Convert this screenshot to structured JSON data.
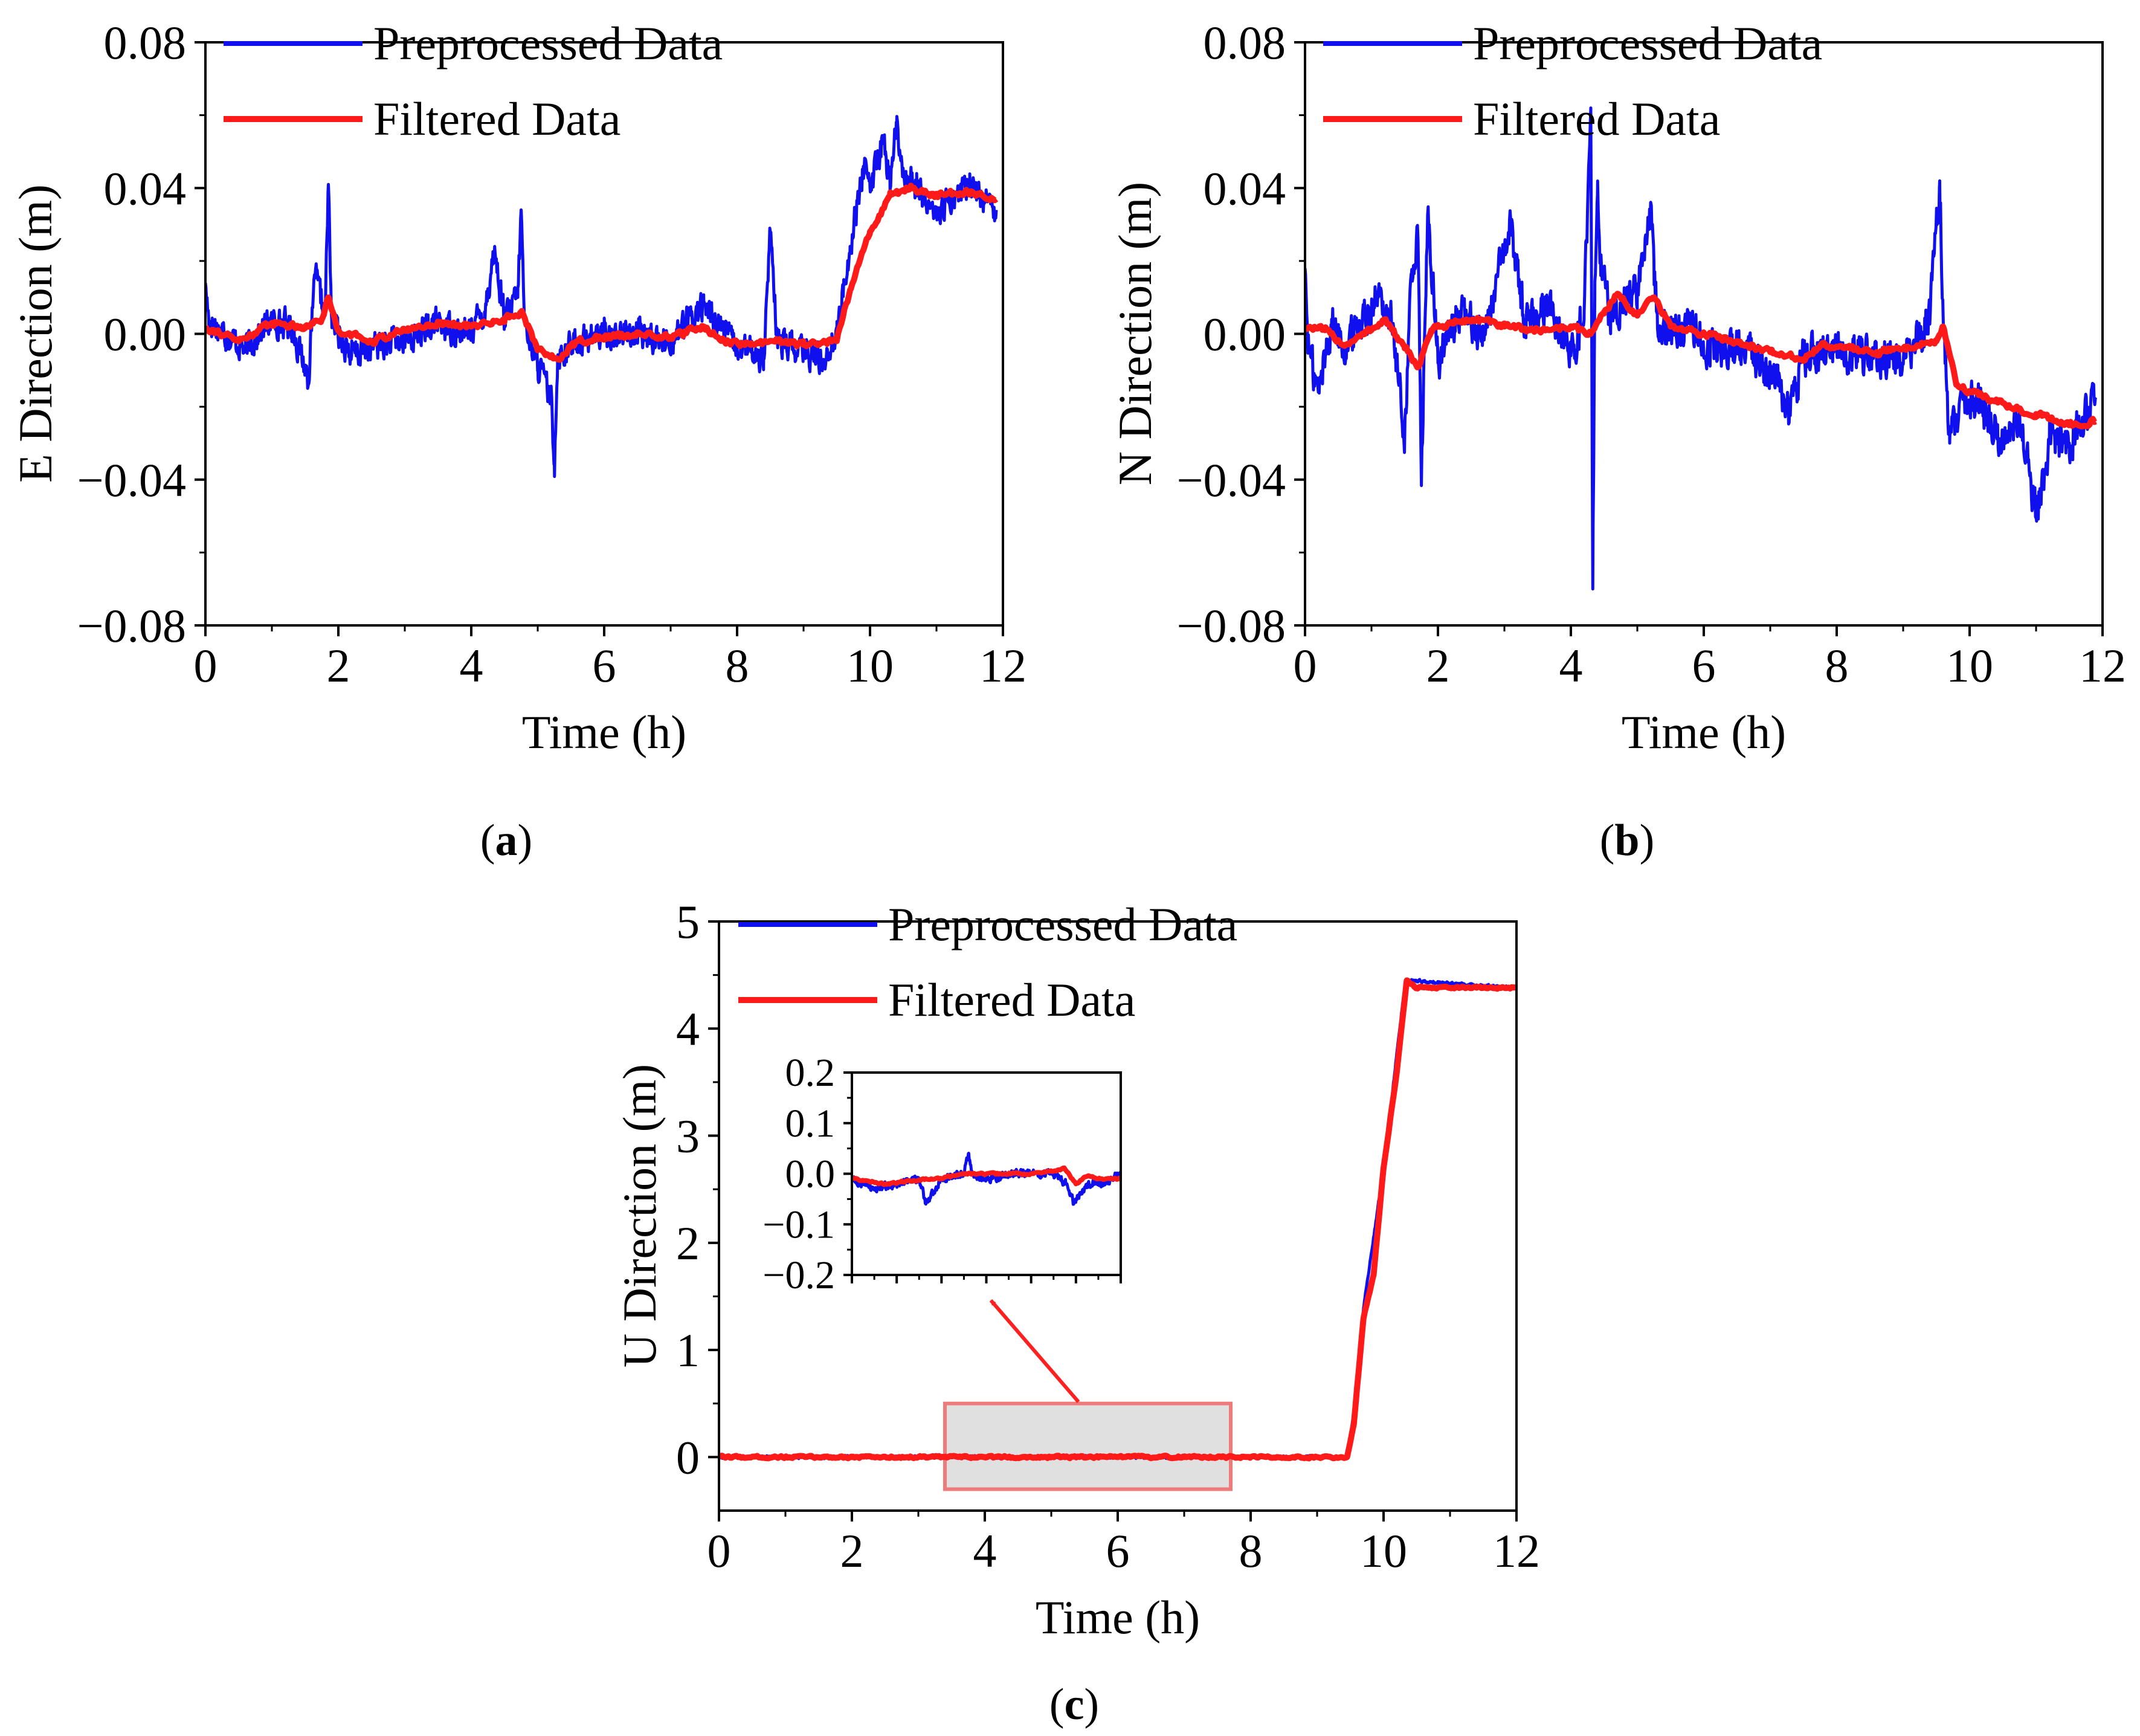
{
  "figure": {
    "panels": [
      "a",
      "b",
      "c"
    ]
  },
  "colors": {
    "preprocessed": "#1010ee",
    "filtered": "#ff1a1a",
    "arrow": "#ff2020",
    "highlight_fill": "#dddddd",
    "highlight_stroke": "#ee7a7a"
  },
  "chart_data": [
    {
      "panel": "a",
      "type": "line",
      "xlabel": "Time (h)",
      "ylabel": "E Direction (m)",
      "xlim": [
        0,
        12
      ],
      "ylim": [
        -0.08,
        0.08
      ],
      "xticks": [
        0,
        2,
        4,
        6,
        8,
        10,
        12
      ],
      "xtick_labels": [
        "0",
        "2",
        "4",
        "6",
        "8",
        "10",
        "12"
      ],
      "yticks": [
        -0.08,
        -0.04,
        0.0,
        0.04,
        0.08
      ],
      "ytick_labels": [
        "−0.08",
        "−0.04",
        "0.00",
        "0.04",
        "0.08"
      ],
      "grid": false,
      "legend_position": "top-left",
      "series": [
        {
          "name": "Preprocessed Data",
          "noise": 0.006,
          "x": [
            0,
            0.05,
            0.3,
            0.6,
            1.0,
            1.3,
            1.55,
            1.65,
            1.8,
            1.85,
            1.9,
            2.2,
            2.6,
            3.0,
            3.5,
            3.9,
            4.2,
            4.35,
            4.5,
            4.7,
            4.75,
            4.8,
            5.0,
            5.2,
            5.25,
            5.3,
            5.6,
            6.0,
            6.5,
            7.0,
            7.5,
            8.0,
            8.4,
            8.5,
            8.6,
            9.0,
            9.3,
            9.5,
            9.7,
            9.9,
            10.0,
            10.2,
            10.3,
            10.4,
            10.5,
            10.7,
            11.0,
            11.5,
            11.9
          ],
          "y": [
            0.014,
            0.004,
            0.0,
            -0.004,
            0.004,
            0.002,
            -0.012,
            0.016,
            0.005,
            0.041,
            0.004,
            -0.006,
            -0.003,
            -0.002,
            0.003,
            0.0,
            0.006,
            0.023,
            0.004,
            0.01,
            0.034,
            0.004,
            -0.008,
            -0.018,
            -0.036,
            -0.006,
            -0.002,
            0.0,
            0.0,
            -0.002,
            0.008,
            -0.004,
            -0.006,
            0.028,
            -0.002,
            -0.005,
            -0.007,
            0.0,
            0.024,
            0.046,
            0.04,
            0.053,
            0.042,
            0.057,
            0.045,
            0.04,
            0.033,
            0.041,
            0.034
          ]
        },
        {
          "name": "Filtered Data",
          "noise": 0.0012,
          "x": [
            0,
            0.5,
            1.0,
            1.5,
            1.75,
            1.85,
            2.0,
            2.5,
            3.0,
            3.5,
            4.0,
            4.5,
            4.75,
            5.0,
            5.3,
            5.6,
            6.0,
            6.5,
            7.0,
            7.5,
            7.8,
            8.2,
            8.6,
            9.0,
            9.5,
            9.7,
            10.0,
            10.3,
            10.6,
            11.0,
            11.5,
            11.9
          ],
          "y": [
            0.002,
            -0.002,
            0.003,
            0.002,
            0.004,
            0.01,
            0.001,
            -0.002,
            0.001,
            0.003,
            0.002,
            0.004,
            0.006,
            -0.004,
            -0.007,
            -0.002,
            -0.001,
            0.0,
            -0.001,
            0.002,
            -0.002,
            -0.003,
            -0.002,
            -0.003,
            -0.002,
            0.012,
            0.028,
            0.038,
            0.04,
            0.038,
            0.039,
            0.037
          ]
        }
      ]
    },
    {
      "panel": "b",
      "type": "line",
      "xlabel": "Time (h)",
      "ylabel": "N Direction (m)",
      "xlim": [
        0,
        12
      ],
      "ylim": [
        -0.08,
        0.08
      ],
      "xticks": [
        0,
        2,
        4,
        6,
        8,
        10,
        12
      ],
      "xtick_labels": [
        "0",
        "2",
        "4",
        "6",
        "8",
        "10",
        "12"
      ],
      "yticks": [
        -0.08,
        -0.04,
        0.0,
        0.04,
        0.08
      ],
      "ytick_labels": [
        "−0.08",
        "−0.04",
        "0.00",
        "0.04",
        "0.08"
      ],
      "grid": false,
      "legend_position": "top-left",
      "series": [
        {
          "name": "Preprocessed Data",
          "noise": 0.008,
          "x": [
            0,
            0.05,
            0.2,
            0.4,
            0.6,
            0.9,
            1.1,
            1.3,
            1.5,
            1.6,
            1.7,
            1.75,
            1.85,
            2.0,
            2.3,
            2.7,
            3.1,
            3.3,
            3.7,
            4.0,
            4.2,
            4.3,
            4.33,
            4.36,
            4.4,
            4.45,
            4.6,
            4.8,
            5.0,
            5.2,
            5.25,
            5.3,
            5.5,
            5.8,
            6.1,
            6.5,
            7.0,
            7.3,
            7.5,
            8.0,
            8.5,
            9.0,
            9.4,
            9.55,
            9.6,
            9.7,
            9.9,
            10.1,
            10.4,
            10.8,
            11.0,
            11.2,
            11.5,
            11.9
          ],
          "y": [
            0.018,
            -0.004,
            -0.016,
            0.004,
            -0.004,
            0.006,
            0.01,
            0.004,
            -0.028,
            0.016,
            0.026,
            -0.04,
            0.034,
            -0.008,
            0.006,
            0.0,
            0.03,
            0.004,
            0.008,
            -0.006,
            0.006,
            0.062,
            -0.07,
            0.01,
            0.038,
            0.016,
            0.004,
            0.01,
            0.012,
            0.036,
            0.02,
            0.006,
            0.0,
            0.003,
            -0.004,
            -0.004,
            -0.01,
            -0.022,
            -0.006,
            -0.004,
            -0.006,
            -0.008,
            0.004,
            0.042,
            0.006,
            -0.03,
            -0.018,
            -0.018,
            -0.028,
            -0.025,
            -0.05,
            -0.03,
            -0.03,
            -0.018
          ]
        },
        {
          "name": "Filtered Data",
          "noise": 0.0012,
          "x": [
            0,
            0.3,
            0.6,
            0.9,
            1.2,
            1.5,
            1.7,
            1.9,
            2.2,
            2.6,
            3.0,
            3.5,
            4.0,
            4.3,
            4.5,
            4.7,
            5.0,
            5.25,
            5.5,
            6.0,
            6.5,
            7.0,
            7.5,
            7.8,
            8.2,
            8.6,
            9.0,
            9.5,
            9.6,
            9.8,
            10.2,
            10.6,
            11.0,
            11.5,
            11.9
          ],
          "y": [
            0.002,
            0.001,
            -0.003,
            0.0,
            0.004,
            -0.004,
            -0.009,
            0.001,
            0.003,
            0.004,
            0.002,
            0.001,
            0.002,
            0.0,
            0.006,
            0.011,
            0.005,
            0.01,
            0.002,
            0.0,
            -0.002,
            -0.005,
            -0.007,
            -0.003,
            -0.004,
            -0.005,
            -0.004,
            -0.002,
            0.002,
            -0.014,
            -0.017,
            -0.02,
            -0.022,
            -0.025,
            -0.024
          ]
        }
      ]
    },
    {
      "panel": "c",
      "type": "line",
      "xlabel": "Time (h)",
      "ylabel": "U Direction (m)",
      "xlim": [
        0,
        12
      ],
      "ylim": [
        -0.5,
        5
      ],
      "xticks": [
        0,
        2,
        4,
        6,
        8,
        10,
        12
      ],
      "xtick_labels": [
        "0",
        "2",
        "4",
        "6",
        "8",
        "10",
        "12"
      ],
      "yticks": [
        0,
        1,
        2,
        3,
        4,
        5
      ],
      "ytick_labels": [
        "0",
        "1",
        "2",
        "3",
        "4",
        "5"
      ],
      "grid": false,
      "legend_position": "top-left",
      "highlight_region": {
        "x": [
          3.4,
          7.7
        ],
        "y": [
          -0.3,
          0.5
        ]
      },
      "series": [
        {
          "name": "Preprocessed Data",
          "noise": 0.02,
          "x": [
            0,
            1,
            2,
            3,
            4,
            5,
            6,
            7,
            8,
            9,
            9.45,
            9.55,
            9.7,
            10.0,
            10.3,
            10.4,
            11.0,
            11.5,
            12.0
          ],
          "y": [
            0.0,
            0.0,
            0.0,
            0.0,
            0.0,
            0.0,
            0.0,
            0.0,
            0.0,
            0.0,
            0.0,
            0.4,
            1.4,
            2.7,
            4.3,
            4.45,
            4.42,
            4.4,
            4.38
          ]
        },
        {
          "name": "Filtered Data",
          "noise": 0.015,
          "x": [
            0,
            1,
            2,
            3,
            4,
            5,
            6,
            7,
            8,
            9,
            9.45,
            9.55,
            9.7,
            9.85,
            10.0,
            10.2,
            10.35,
            10.5,
            11.0,
            12.0
          ],
          "y": [
            0.0,
            0.0,
            0.0,
            0.0,
            0.0,
            0.0,
            0.0,
            0.0,
            0.0,
            0.0,
            0.0,
            0.3,
            1.3,
            1.7,
            2.7,
            3.6,
            4.45,
            4.38,
            4.38,
            4.38
          ]
        }
      ],
      "inset": {
        "xlim": [
          0,
          12
        ],
        "ylim": [
          -0.2,
          0.2
        ],
        "yticks": [
          -0.2,
          -0.1,
          0.0,
          0.1,
          0.2
        ],
        "ytick_labels": [
          "−0.2",
          "−0.1",
          "0.0",
          "0.1",
          "0.2"
        ],
        "series": [
          {
            "name": "Preprocessed Data",
            "noise": 0.012,
            "x": [
              0,
              1.0,
              2.0,
              3.0,
              3.3,
              3.6,
              4.0,
              5.0,
              5.2,
              5.4,
              6.0,
              7.0,
              9.0,
              9.6,
              9.9,
              10.5,
              11.2,
              12.0
            ],
            "y": [
              -0.01,
              -0.03,
              -0.02,
              -0.01,
              -0.06,
              -0.04,
              -0.01,
              0.0,
              0.04,
              0.0,
              -0.01,
              0.0,
              0.0,
              -0.02,
              -0.06,
              -0.02,
              -0.02,
              0.0
            ]
          },
          {
            "name": "Filtered Data",
            "noise": 0.003,
            "x": [
              0,
              1.5,
              3.0,
              4.0,
              5.0,
              6.0,
              7.0,
              8.0,
              9.0,
              9.5,
              10.0,
              10.5,
              11.0,
              12.0
            ],
            "y": [
              -0.01,
              -0.02,
              -0.012,
              -0.01,
              0.0,
              0.0,
              0.0,
              0.0,
              0.005,
              0.01,
              -0.02,
              -0.005,
              -0.01,
              -0.01
            ]
          }
        ]
      }
    }
  ]
}
